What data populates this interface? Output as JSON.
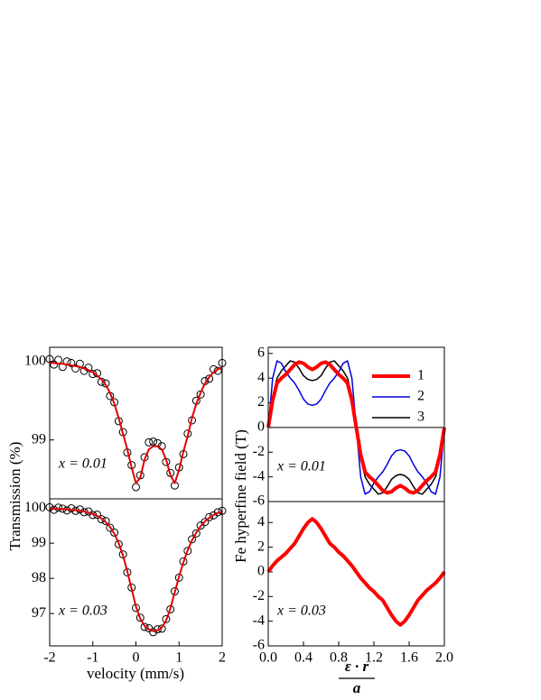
{
  "chart_data": [
    {
      "type": "scatter",
      "ylabel": "Transmission (%)",
      "annotation": "x = 0.01",
      "xlim": [
        -2,
        2
      ],
      "ylim": [
        98.25,
        100.18
      ],
      "yticks": [
        100,
        99
      ],
      "x": [
        -2,
        -1.9,
        -1.8,
        -1.7,
        -1.6,
        -1.5,
        -1.4,
        -1.3,
        -1.2,
        -1.1,
        -1,
        -0.9,
        -0.8,
        -0.7,
        -0.6,
        -0.5,
        -0.4,
        -0.3,
        -0.2,
        -0.1,
        0,
        0.1,
        0.2,
        0.3,
        0.4,
        0.5,
        0.6,
        0.7,
        0.8,
        0.9,
        1,
        1.1,
        1.2,
        1.3,
        1.4,
        1.5,
        1.6,
        1.7,
        1.8,
        1.9,
        2
      ],
      "series": [
        {
          "kind": "points",
          "color": "#000000",
          "values": [
            100.03,
            99.96,
            100.02,
            99.93,
            100.0,
            99.98,
            99.91,
            99.97,
            99.88,
            99.92,
            99.84,
            99.85,
            99.74,
            99.72,
            99.56,
            99.48,
            99.24,
            99.1,
            98.84,
            98.68,
            98.4,
            98.55,
            98.78,
            98.97,
            98.98,
            98.96,
            98.92,
            98.72,
            98.58,
            98.42,
            98.65,
            98.82,
            99.08,
            99.25,
            99.5,
            99.58,
            99.75,
            99.78,
            99.9,
            99.88,
            99.98
          ]
        },
        {
          "kind": "line",
          "color": "#e00000",
          "line_width": 2,
          "values": [
            99.98,
            99.98,
            99.97,
            99.97,
            99.96,
            99.95,
            99.94,
            99.93,
            99.91,
            99.89,
            99.86,
            99.82,
            99.77,
            99.7,
            99.6,
            99.46,
            99.28,
            99.08,
            98.88,
            98.65,
            98.45,
            98.52,
            98.75,
            98.88,
            98.92,
            98.92,
            98.88,
            98.75,
            98.55,
            98.45,
            98.62,
            98.85,
            99.05,
            99.28,
            99.46,
            99.6,
            99.72,
            99.8,
            99.86,
            99.9,
            99.92
          ]
        }
      ]
    },
    {
      "type": "scatter",
      "xlabel": "velocity (mm/s)",
      "annotation": "x = 0.03",
      "xlim": [
        -2,
        2
      ],
      "ylim": [
        96.08,
        100.26
      ],
      "xticks": [
        -2,
        -1,
        0,
        1,
        2
      ],
      "yticks": [
        100,
        99,
        98,
        97
      ],
      "x": [
        -2,
        -1.9,
        -1.8,
        -1.7,
        -1.6,
        -1.5,
        -1.4,
        -1.3,
        -1.2,
        -1.1,
        -1,
        -0.9,
        -0.8,
        -0.7,
        -0.6,
        -0.5,
        -0.4,
        -0.3,
        -0.2,
        -0.1,
        0,
        0.1,
        0.2,
        0.3,
        0.4,
        0.5,
        0.6,
        0.7,
        0.8,
        0.9,
        1,
        1.1,
        1.2,
        1.3,
        1.4,
        1.5,
        1.6,
        1.7,
        1.8,
        1.9,
        2
      ],
      "series": [
        {
          "kind": "points",
          "color": "#000000",
          "values": [
            100.02,
            99.95,
            100.01,
            99.98,
            99.93,
            99.99,
            99.92,
            99.96,
            99.88,
            99.9,
            99.8,
            99.81,
            99.68,
            99.63,
            99.44,
            99.3,
            98.97,
            98.68,
            98.17,
            97.74,
            97.16,
            96.88,
            96.62,
            96.58,
            96.47,
            96.55,
            96.57,
            96.84,
            97.12,
            97.63,
            98.02,
            98.48,
            98.78,
            99.11,
            99.28,
            99.5,
            99.6,
            99.74,
            99.79,
            99.88,
            99.92
          ]
        },
        {
          "kind": "line",
          "color": "#e00000",
          "line_width": 2,
          "values": [
            99.98,
            99.98,
            99.97,
            99.97,
            99.96,
            99.95,
            99.94,
            99.92,
            99.9,
            99.87,
            99.83,
            99.78,
            99.7,
            99.6,
            99.46,
            99.27,
            99.0,
            98.65,
            98.2,
            97.7,
            97.2,
            96.85,
            96.65,
            96.55,
            96.5,
            96.52,
            96.6,
            96.8,
            97.15,
            97.6,
            98.05,
            98.45,
            98.8,
            99.08,
            99.3,
            99.48,
            99.62,
            99.72,
            99.8,
            99.86,
            99.9
          ]
        }
      ]
    },
    {
      "type": "line",
      "ylabel": "Fe hyperfine field (T)",
      "annotation": "x = 0.01",
      "zero_line": true,
      "legend": "upper right",
      "xlim": [
        0,
        2
      ],
      "ylim": [
        -6,
        6.5
      ],
      "yticks": [
        6,
        4,
        2,
        0,
        -2,
        -4,
        -6
      ],
      "x": [
        0,
        0.05,
        0.1,
        0.15,
        0.2,
        0.25,
        0.3,
        0.35,
        0.4,
        0.45,
        0.5,
        0.55,
        0.6,
        0.65,
        0.7,
        0.75,
        0.8,
        0.85,
        0.9,
        0.95,
        1,
        1.05,
        1.1,
        1.15,
        1.2,
        1.25,
        1.3,
        1.35,
        1.4,
        1.45,
        1.5,
        1.55,
        1.6,
        1.65,
        1.7,
        1.75,
        1.8,
        1.85,
        1.9,
        1.95,
        2
      ],
      "series": [
        {
          "name": "1",
          "color": "#ff0000",
          "line_width": 4,
          "values": [
            0,
            2.2,
            3.6,
            4.0,
            4.3,
            4.7,
            5.1,
            5.3,
            5.2,
            4.9,
            4.7,
            4.9,
            5.2,
            5.3,
            5.1,
            4.7,
            4.3,
            4.0,
            3.6,
            2.2,
            0,
            -2.2,
            -3.6,
            -4.0,
            -4.3,
            -4.7,
            -5.1,
            -5.3,
            -5.2,
            -4.9,
            -4.7,
            -4.9,
            -5.2,
            -5.3,
            -5.1,
            -4.7,
            -4.3,
            -4.0,
            -3.6,
            -2.2,
            0
          ]
        },
        {
          "name": "2",
          "color": "#0000dd",
          "line_width": 1.5,
          "values": [
            0,
            4.0,
            5.4,
            5.2,
            4.5,
            4.0,
            3.6,
            3.0,
            2.3,
            1.9,
            1.8,
            1.9,
            2.3,
            3.0,
            3.6,
            4.0,
            4.5,
            5.2,
            5.4,
            4.0,
            0,
            -4.0,
            -5.4,
            -5.2,
            -4.5,
            -4.0,
            -3.6,
            -3.0,
            -2.3,
            -1.9,
            -1.8,
            -1.9,
            -2.3,
            -3.0,
            -3.6,
            -4.0,
            -4.5,
            -5.2,
            -5.4,
            -4.0,
            0
          ]
        },
        {
          "name": "3",
          "color": "#000000",
          "line_width": 1.5,
          "values": [
            0,
            2.5,
            4.0,
            4.6,
            5.0,
            5.4,
            5.3,
            4.8,
            4.2,
            3.9,
            3.8,
            3.9,
            4.2,
            4.8,
            5.3,
            5.4,
            5.0,
            4.6,
            4.0,
            2.5,
            0,
            -2.5,
            -4.0,
            -4.6,
            -5.0,
            -5.4,
            -5.3,
            -4.8,
            -4.2,
            -3.9,
            -3.8,
            -3.9,
            -4.2,
            -4.8,
            -5.3,
            -5.4,
            -5.0,
            -4.6,
            -4.0,
            -2.5,
            0
          ]
        }
      ]
    },
    {
      "type": "line",
      "xlabel": {
        "numerator": "ε · r",
        "denominator": "a"
      },
      "annotation": "x = 0.03",
      "xlim": [
        0,
        2
      ],
      "ylim": [
        -6,
        5.7
      ],
      "yticks": [
        4,
        2,
        0,
        -2,
        -4,
        -6
      ],
      "xticks": [
        {
          "value": 0,
          "label": "0.0"
        },
        {
          "value": 0.4,
          "label": "0.4"
        },
        {
          "value": 0.8,
          "label": "0.8"
        },
        {
          "value": 1.2,
          "label": "1.2"
        },
        {
          "value": 1.6,
          "label": "1.6"
        },
        {
          "value": 2,
          "label": "2.0"
        }
      ],
      "x": [
        0,
        0.05,
        0.1,
        0.15,
        0.2,
        0.25,
        0.3,
        0.35,
        0.4,
        0.45,
        0.5,
        0.55,
        0.6,
        0.65,
        0.7,
        0.75,
        0.8,
        0.85,
        0.9,
        0.95,
        1,
        1.05,
        1.1,
        1.15,
        1.2,
        1.25,
        1.3,
        1.35,
        1.4,
        1.45,
        1.5,
        1.55,
        1.6,
        1.65,
        1.7,
        1.75,
        1.8,
        1.85,
        1.9,
        1.95,
        2
      ],
      "series": [
        {
          "color": "#ff0000",
          "line_width": 4,
          "values": [
            0,
            0.5,
            0.9,
            1.2,
            1.5,
            1.9,
            2.3,
            2.9,
            3.5,
            4.0,
            4.3,
            4.0,
            3.5,
            2.9,
            2.3,
            2.0,
            1.6,
            1.3,
            0.9,
            0.5,
            0,
            -0.5,
            -0.9,
            -1.3,
            -1.6,
            -2.0,
            -2.3,
            -2.9,
            -3.5,
            -4.0,
            -4.3,
            -4.0,
            -3.5,
            -2.9,
            -2.3,
            -1.9,
            -1.5,
            -1.2,
            -0.9,
            -0.5,
            0
          ]
        }
      ]
    }
  ]
}
